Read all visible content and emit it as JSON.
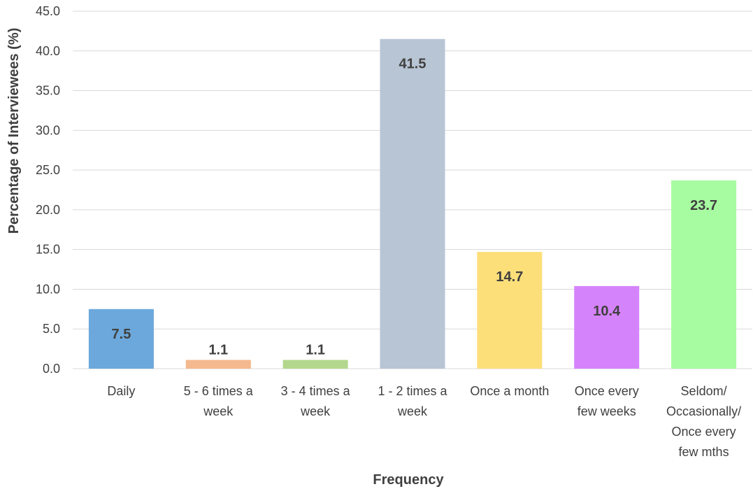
{
  "chart_data": {
    "type": "bar",
    "categories": [
      [
        "Daily"
      ],
      [
        "5 - 6 times a",
        "week"
      ],
      [
        "3 - 4 times a",
        "week"
      ],
      [
        "1 - 2 times a",
        "week"
      ],
      [
        "Once a month"
      ],
      [
        "Once every",
        "few weeks"
      ],
      [
        "Seldom/",
        "Occasionally/",
        "Once every",
        "few mths"
      ]
    ],
    "values": [
      7.5,
      1.1,
      1.1,
      41.5,
      14.7,
      10.4,
      23.7
    ],
    "value_labels": [
      "7.5",
      "1.1",
      "1.1",
      "41.5",
      "14.7",
      "10.4",
      "23.7"
    ],
    "bar_colors": [
      "#6ca8dc",
      "#f4b98f",
      "#b3d88d",
      "#b8c5d4",
      "#fddf7a",
      "#d583fb",
      "#a7fba0"
    ],
    "xlabel": "Frequency",
    "ylabel": "Percentage of Interviewees (%)",
    "ylim": [
      0,
      45
    ],
    "yticks": [
      "0.0",
      "5.0",
      "10.0",
      "15.0",
      "20.0",
      "25.0",
      "30.0",
      "35.0",
      "40.0",
      "45.0"
    ],
    "ytick_values": [
      0,
      5,
      10,
      15,
      20,
      25,
      30,
      35,
      40,
      45
    ],
    "grid": true,
    "legend": "none"
  }
}
